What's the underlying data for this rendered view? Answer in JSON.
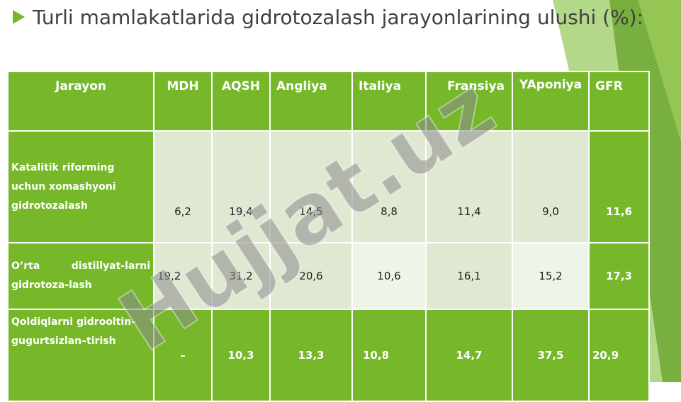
{
  "title": "Turli mamlakatlarida gidrotozalash jarayonlarining ulushi (%):",
  "watermark_text": "Hujjat.uz",
  "colors": {
    "accent": "#76b82a",
    "light_cell": "#dfe9d2",
    "lighter_cell": "#eff4e9",
    "title_text": "#404040"
  },
  "table": {
    "headers": [
      "Jarayon",
      "MDH",
      "AQSH",
      "Angliya",
      "Italiya",
      "Fransiya",
      "YAponiya",
      "GFR"
    ],
    "rows": [
      {
        "label": "Katalitik riforming uchun xomashyoni gidrotozalash",
        "values": [
          "6,2",
          "19,4",
          "14,5",
          "8,8",
          "11,4",
          "9,0",
          "11,6"
        ]
      },
      {
        "label": "O’rta distillyat-larni gidrotoza-lash",
        "values": [
          "19,2",
          "31,2",
          "20,6",
          "10,6",
          "16,1",
          "15,2",
          "17,3"
        ]
      },
      {
        "label": "Qoldiqlarni gidrooltin–gugurtsizlan–tirish",
        "values": [
          "–",
          "10,3",
          "13,3",
          "10,8",
          "14,7",
          "37,5",
          "20,9"
        ]
      }
    ]
  }
}
